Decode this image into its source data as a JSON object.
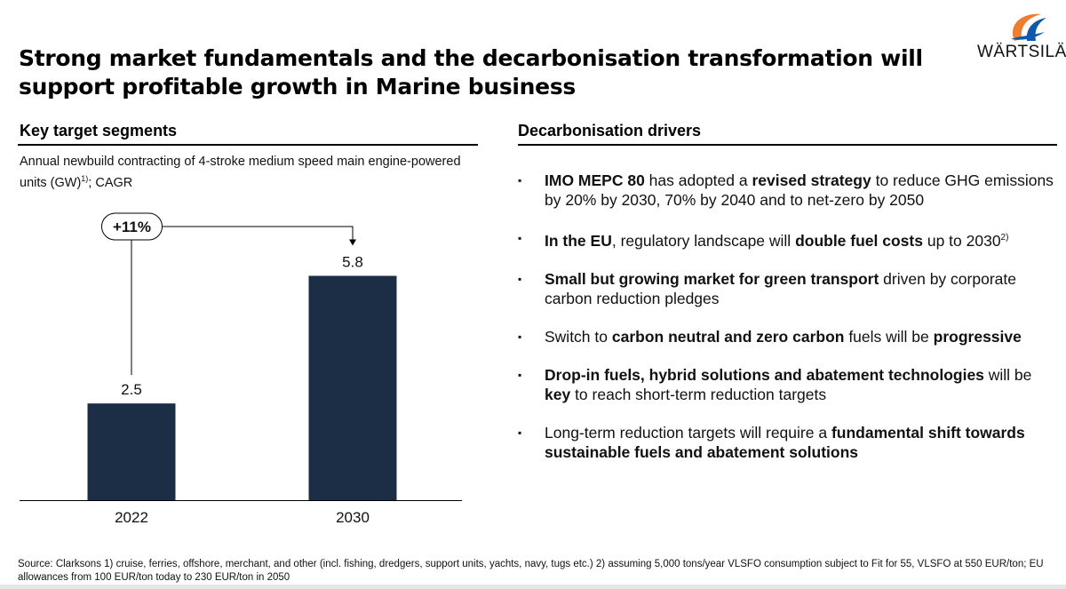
{
  "title": "Strong market fundamentals and the decarbonisation transformation will support profitable growth in Marine business",
  "logo": {
    "text": "WÄRTSILÄ"
  },
  "left_section": {
    "heading": "Key target segments",
    "subtitle": "Annual newbuild contracting of 4-stroke medium speed main engine-powered units (GW)",
    "subtitle_sup": "1)",
    "subtitle_tail": "; CAGR"
  },
  "chart_data": {
    "type": "bar",
    "title": "Annual newbuild contracting of 4-stroke medium speed main engine-powered units (GW)",
    "categories": [
      "2022",
      "2030"
    ],
    "values": [
      2.5,
      5.8
    ],
    "value_labels": [
      "2.5",
      "5.8"
    ],
    "bar_color": "#1b2e45",
    "cagr_label": "+11%",
    "ylim": [
      0,
      6.5
    ],
    "grid": false
  },
  "right_section": {
    "heading": "Decarbonisation drivers",
    "items": [
      {
        "parts": [
          {
            "b": true,
            "t": "IMO MEPC 80"
          },
          {
            "t": " has adopted a "
          },
          {
            "b": true,
            "t": "revised strategy"
          },
          {
            "t": " to reduce GHG emissions by 20% by 2030, 70% by 2040 and to net-zero by 2050"
          }
        ]
      },
      {
        "parts": [
          {
            "b": true,
            "t": "In the EU"
          },
          {
            "t": ", regulatory landscape will "
          },
          {
            "b": true,
            "t": "double fuel costs"
          },
          {
            "t": " up to 2030"
          },
          {
            "sup": true,
            "t": "2)"
          }
        ]
      },
      {
        "parts": [
          {
            "b": true,
            "t": "Small but growing market for green transport"
          },
          {
            "t": " driven by corporate carbon reduction pledges"
          }
        ]
      },
      {
        "parts": [
          {
            "t": "Switch to "
          },
          {
            "b": true,
            "t": "carbon neutral and zero carbon"
          },
          {
            "t": " fuels will be "
          },
          {
            "b": true,
            "t": "progressive"
          }
        ]
      },
      {
        "parts": [
          {
            "b": true,
            "t": "Drop-in fuels, hybrid solutions and abatement technologies"
          },
          {
            "t": " will be "
          },
          {
            "b": true,
            "t": "key"
          },
          {
            "t": " to reach short-term reduction targets"
          }
        ]
      },
      {
        "parts": [
          {
            "t": "Long-term reduction targets will require a "
          },
          {
            "b": true,
            "t": "fundamental shift towards sustainable fuels and abatement solutions"
          }
        ]
      }
    ]
  },
  "footnote": "Source: Clarksons 1) cruise, ferries, offshore, merchant, and other (incl. fishing, dredgers, support units, yachts, navy, tugs etc.) 2) assuming 5,000 tons/year VLSFO consumption subject to Fit for 55, VLSFO at 550 EUR/ton; EU allowances from 100 EUR/ton today to 230 EUR/ton in 2050",
  "colors": {
    "bar": "#1b2e45",
    "logo_orange": "#ee7d2f",
    "logo_blue": "#0f5aa8"
  }
}
